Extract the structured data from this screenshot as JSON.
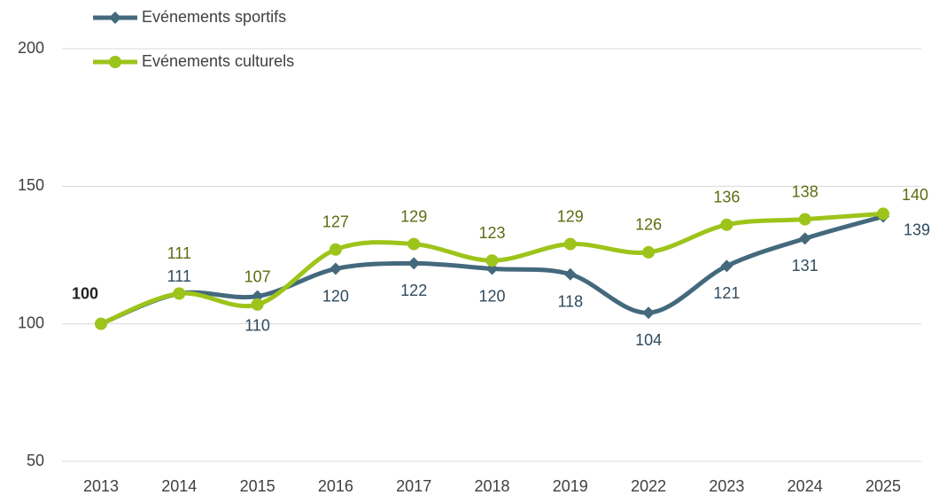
{
  "chart_data": {
    "type": "line",
    "categories": [
      "2013",
      "2014",
      "2015",
      "2016",
      "2017",
      "2018",
      "2019",
      "2022",
      "2023",
      "2024",
      "2025"
    ],
    "series": [
      {
        "name": "Evénements sportifs",
        "color": "#44697d",
        "values": [
          100,
          111,
          110,
          120,
          122,
          120,
          118,
          104,
          121,
          131,
          139
        ]
      },
      {
        "name": "Evénements culturels",
        "color": "#9dc41a",
        "values": [
          100,
          111,
          107,
          127,
          129,
          123,
          129,
          126,
          136,
          138,
          140
        ]
      }
    ],
    "ylim": [
      50,
      200
    ],
    "yticks": [
      50,
      100,
      150,
      200
    ],
    "grid": true,
    "legend": "top-left"
  }
}
